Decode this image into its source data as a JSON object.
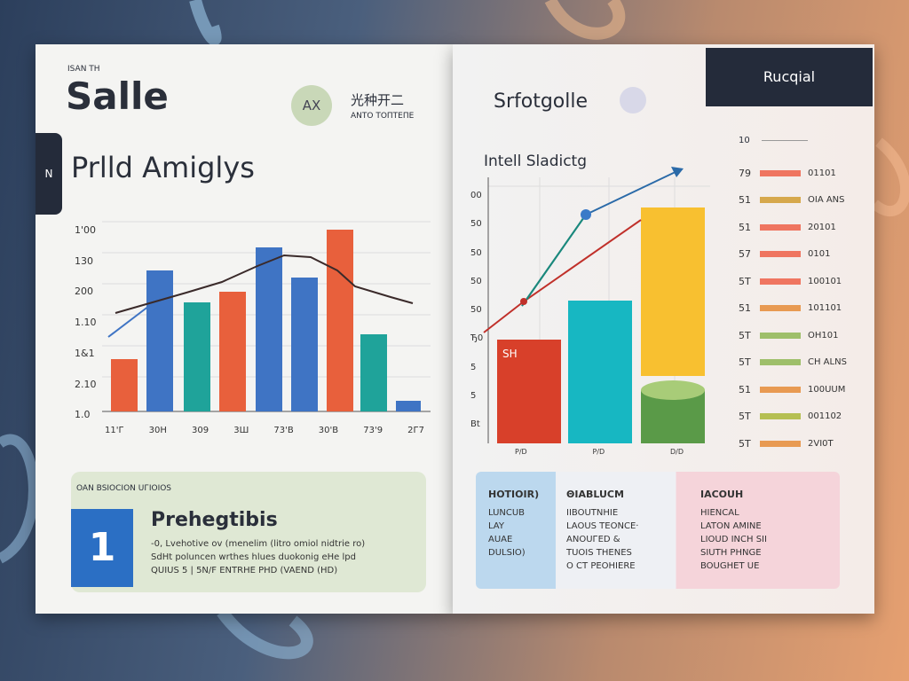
{
  "left_page": {
    "kicker": "ISAN TH",
    "title": "Salle",
    "badge": "AX",
    "badge_title": "光种开二",
    "badge_sub": "ANTO TOПTEПE",
    "tab": "N",
    "heading": "Prlld Amiglys",
    "y_labels": [
      "1'00",
      "130",
      "200",
      "1.10",
      "1&1",
      "2.10",
      "1.0"
    ],
    "x_labels": [
      "11'Г",
      "30H",
      "309",
      "3Ш",
      "73'B",
      "30'B",
      "73'9",
      "2Г7"
    ],
    "box": {
      "kicker": "OAN BSIOCION UГIOIOS",
      "number": "1",
      "title": "Prehegtibis",
      "lines": [
        "-0, Lvehotive ov (menelim (litro omiol nidtrie ro)",
        "SdHt poluncen wrthes hlues duokonig eHe lpd",
        "QUIUS 5 | 5N/F ENTRHE PHD (VAEND (HD)"
      ]
    }
  },
  "right_page": {
    "title": "Srfotgolle",
    "tab": "Rucqial",
    "heading": "Intell Sladictg",
    "y_labels": [
      "00",
      "50",
      "50",
      "50",
      "50",
      "Ђ0",
      "5",
      "5",
      "Bt"
    ],
    "bar_label": "SH",
    "axis_x": [
      "P/D",
      "P/D",
      "D/D"
    ],
    "legend_top": "10",
    "legend": [
      {
        "num": "79",
        "label": "01101"
      },
      {
        "num": "51",
        "label": "OIA ANS"
      },
      {
        "num": "51",
        "label": "20101"
      },
      {
        "num": "57",
        "label": "0101"
      },
      {
        "num": "5T",
        "label": "100101"
      },
      {
        "num": "51",
        "label": "101101"
      },
      {
        "num": "5T",
        "label": "OH101"
      },
      {
        "num": "5T",
        "label": "CH ALNS"
      },
      {
        "num": "51",
        "label": "100UUM"
      },
      {
        "num": "5T",
        "label": "001102"
      },
      {
        "num": "5T",
        "label": "2VI0T"
      }
    ],
    "table": {
      "headers": [
        "HOTIOIR)",
        "ΘIABLUCM",
        "IACOUH"
      ],
      "columns": [
        [
          "LUNCUB",
          "LAY",
          "AUAE",
          "DULSIO)"
        ],
        [
          "IIBOUTNHIE",
          "LAOUS TEONCE·",
          "ANOUГED &",
          "TUOIS THENES",
          "O CT PEOHIERE"
        ],
        [
          "HIENCAL",
          "LATON AMINE",
          "LIOUD INCH SII",
          "SIUTH PHNGE",
          "BOUGHET UE"
        ]
      ]
    }
  }
}
